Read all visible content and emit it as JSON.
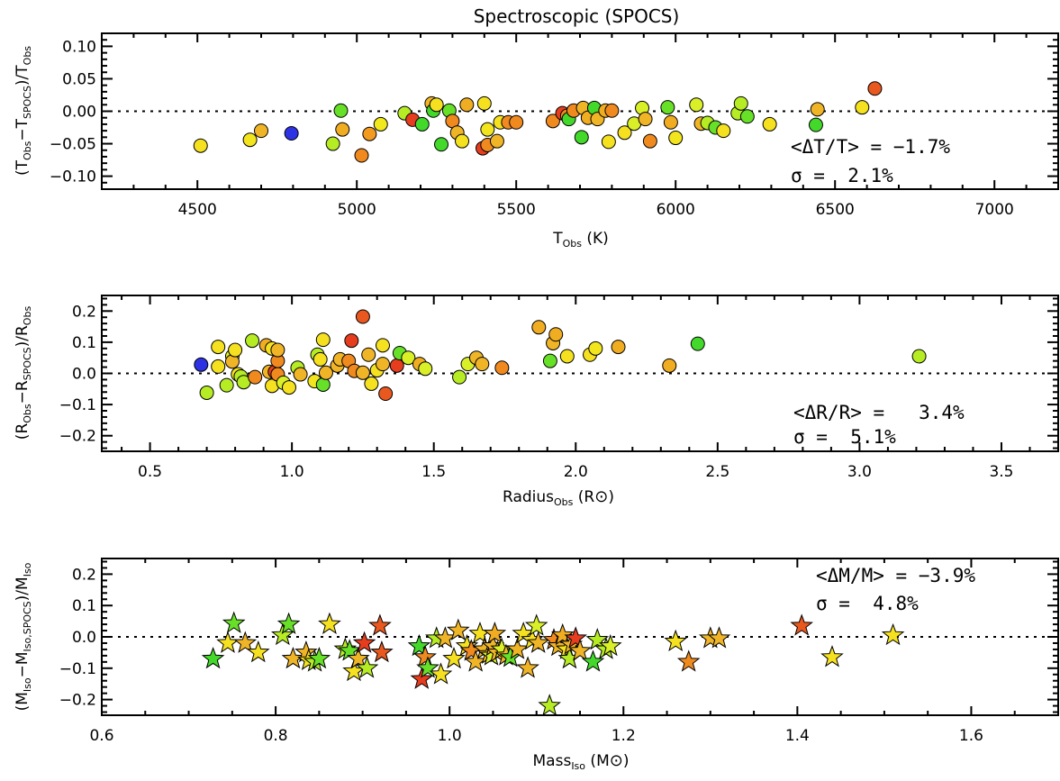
{
  "title": "Spectroscopic (SPOCS)",
  "chart_data": [
    {
      "type": "scatter",
      "marker": "circle",
      "xlabel": "T_Obs (K)",
      "ylabel": "(T_Obs−T_SPOCS)/T_Obs",
      "xlim": [
        4200,
        7200
      ],
      "ylim": [
        -0.12,
        0.12
      ],
      "xticks": [
        "4500",
        "5000",
        "5500",
        "6000",
        "6500",
        "7000"
      ],
      "yticks": [
        "−0.10",
        "−0.05",
        "0.00",
        "0.05",
        "0.10"
      ],
      "reference_line": 0,
      "stats": [
        "<ΔT/T> = −1.7%",
        "σ =  2.1%"
      ],
      "points": [
        {
          "x": 4510,
          "y": -0.053,
          "c": "#f5e11f"
        },
        {
          "x": 4665,
          "y": -0.044,
          "c": "#f2e51e"
        },
        {
          "x": 4700,
          "y": -0.03,
          "c": "#f0b527"
        },
        {
          "x": 4795,
          "y": -0.034,
          "c": "#2d32e3"
        },
        {
          "x": 4925,
          "y": -0.05,
          "c": "#b6ec24"
        },
        {
          "x": 4950,
          "y": 0.001,
          "c": "#67e028"
        },
        {
          "x": 4955,
          "y": -0.028,
          "c": "#f0ad21"
        },
        {
          "x": 5015,
          "y": -0.068,
          "c": "#f08a1f"
        },
        {
          "x": 5040,
          "y": -0.035,
          "c": "#f29b20"
        },
        {
          "x": 5075,
          "y": -0.02,
          "c": "#f2e81e"
        },
        {
          "x": 5150,
          "y": -0.003,
          "c": "#b6ec24"
        },
        {
          "x": 5175,
          "y": -0.013,
          "c": "#e63d1f"
        },
        {
          "x": 5205,
          "y": -0.02,
          "c": "#43d92a"
        },
        {
          "x": 5235,
          "y": 0.012,
          "c": "#f0b527"
        },
        {
          "x": 5240,
          "y": 0.001,
          "c": "#43d92a"
        },
        {
          "x": 5250,
          "y": 0.01,
          "c": "#f5e11f"
        },
        {
          "x": 5265,
          "y": -0.051,
          "c": "#43d92a"
        },
        {
          "x": 5290,
          "y": 0.001,
          "c": "#67e028"
        },
        {
          "x": 5300,
          "y": -0.015,
          "c": "#f08a1f"
        },
        {
          "x": 5315,
          "y": -0.033,
          "c": "#f0b527"
        },
        {
          "x": 5330,
          "y": -0.046,
          "c": "#f5e11f"
        },
        {
          "x": 5345,
          "y": 0.01,
          "c": "#f0ad21"
        },
        {
          "x": 5395,
          "y": -0.057,
          "c": "#e63d1f"
        },
        {
          "x": 5400,
          "y": 0.012,
          "c": "#f5e11f"
        },
        {
          "x": 5410,
          "y": -0.052,
          "c": "#f08a1f"
        },
        {
          "x": 5410,
          "y": -0.028,
          "c": "#f2e51e"
        },
        {
          "x": 5440,
          "y": -0.046,
          "c": "#f0b527"
        },
        {
          "x": 5450,
          "y": -0.017,
          "c": "#f5e11f"
        },
        {
          "x": 5475,
          "y": -0.017,
          "c": "#f08a1f"
        },
        {
          "x": 5500,
          "y": -0.017,
          "c": "#f08a1f"
        },
        {
          "x": 5615,
          "y": -0.015,
          "c": "#f08a1f"
        },
        {
          "x": 5645,
          "y": -0.003,
          "c": "#e63d1f"
        },
        {
          "x": 5660,
          "y": -0.007,
          "c": "#f08a1f"
        },
        {
          "x": 5665,
          "y": -0.012,
          "c": "#43d92a"
        },
        {
          "x": 5680,
          "y": 0.001,
          "c": "#f08a1f"
        },
        {
          "x": 5705,
          "y": -0.04,
          "c": "#43d92a"
        },
        {
          "x": 5710,
          "y": 0.005,
          "c": "#f0b527"
        },
        {
          "x": 5725,
          "y": -0.01,
          "c": "#f0ad21"
        },
        {
          "x": 5745,
          "y": 0.005,
          "c": "#43d92a"
        },
        {
          "x": 5755,
          "y": -0.012,
          "c": "#f0b527"
        },
        {
          "x": 5780,
          "y": 0.001,
          "c": "#f0ad21"
        },
        {
          "x": 5790,
          "y": -0.047,
          "c": "#f5e11f"
        },
        {
          "x": 5800,
          "y": 0.001,
          "c": "#f08a1f"
        },
        {
          "x": 5840,
          "y": -0.033,
          "c": "#f5e11f"
        },
        {
          "x": 5870,
          "y": -0.019,
          "c": "#d9ef28"
        },
        {
          "x": 5895,
          "y": 0.005,
          "c": "#d9ef28"
        },
        {
          "x": 5905,
          "y": -0.012,
          "c": "#f0b527"
        },
        {
          "x": 5920,
          "y": -0.046,
          "c": "#f08a1f"
        },
        {
          "x": 5975,
          "y": 0.006,
          "c": "#67e028"
        },
        {
          "x": 5985,
          "y": -0.017,
          "c": "#f0ad21"
        },
        {
          "x": 6000,
          "y": -0.041,
          "c": "#f2e51e"
        },
        {
          "x": 6065,
          "y": 0.01,
          "c": "#d9ef28"
        },
        {
          "x": 6080,
          "y": -0.019,
          "c": "#f0b527"
        },
        {
          "x": 6100,
          "y": -0.018,
          "c": "#b6ec24"
        },
        {
          "x": 6125,
          "y": -0.025,
          "c": "#67e028"
        },
        {
          "x": 6150,
          "y": -0.03,
          "c": "#f5e11f"
        },
        {
          "x": 6195,
          "y": -0.003,
          "c": "#b6ec24"
        },
        {
          "x": 6205,
          "y": 0.012,
          "c": "#b6ec24"
        },
        {
          "x": 6225,
          "y": -0.008,
          "c": "#67e028"
        },
        {
          "x": 6295,
          "y": -0.02,
          "c": "#f5e11f"
        },
        {
          "x": 6440,
          "y": -0.021,
          "c": "#43d92a"
        },
        {
          "x": 6445,
          "y": 0.003,
          "c": "#f0b527"
        },
        {
          "x": 6585,
          "y": 0.006,
          "c": "#f5e11f"
        },
        {
          "x": 6625,
          "y": 0.035,
          "c": "#e8581f"
        }
      ]
    },
    {
      "type": "scatter",
      "marker": "circle",
      "xlabel": "Radius_Obs (R_⊙)",
      "ylabel": "(R_Obs−R_SPOCS)/R_Obs",
      "xlim": [
        0.33,
        3.7
      ],
      "ylim": [
        -0.25,
        0.25
      ],
      "xticks": [
        "0.5",
        "1.0",
        "1.5",
        "2.0",
        "2.5",
        "3.0",
        "3.5"
      ],
      "yticks": [
        "−0.2",
        "−0.1",
        "0.0",
        "0.1",
        "0.2"
      ],
      "reference_line": 0,
      "stats": [
        "<ΔR/R> =   3.4%",
        "σ =  5.1%"
      ],
      "points": [
        {
          "x": 0.68,
          "y": 0.028,
          "c": "#2d32e3"
        },
        {
          "x": 0.7,
          "y": -0.062,
          "c": "#b6ec24"
        },
        {
          "x": 0.74,
          "y": 0.085,
          "c": "#f5e11f"
        },
        {
          "x": 0.74,
          "y": 0.022,
          "c": "#f5e11f"
        },
        {
          "x": 0.77,
          "y": -0.038,
          "c": "#b6ec24"
        },
        {
          "x": 0.79,
          "y": 0.055,
          "c": "#d9ef28"
        },
        {
          "x": 0.79,
          "y": 0.038,
          "c": "#f0b527"
        },
        {
          "x": 0.8,
          "y": 0.075,
          "c": "#f5e11f"
        },
        {
          "x": 0.81,
          "y": -0.003,
          "c": "#f5e11f"
        },
        {
          "x": 0.82,
          "y": -0.01,
          "c": "#b6ec24"
        },
        {
          "x": 0.83,
          "y": -0.028,
          "c": "#b6ec24"
        },
        {
          "x": 0.86,
          "y": 0.105,
          "c": "#b6ec24"
        },
        {
          "x": 0.87,
          "y": -0.012,
          "c": "#f08a1f"
        },
        {
          "x": 0.91,
          "y": 0.09,
          "c": "#f0ad21"
        },
        {
          "x": 0.92,
          "y": 0.005,
          "c": "#f0b527"
        },
        {
          "x": 0.93,
          "y": 0.08,
          "c": "#f5e11f"
        },
        {
          "x": 0.93,
          "y": -0.04,
          "c": "#f5e11f"
        },
        {
          "x": 0.94,
          "y": 0.005,
          "c": "#e63d1f"
        },
        {
          "x": 0.95,
          "y": -0.003,
          "c": "#f08a1f"
        },
        {
          "x": 0.95,
          "y": 0.04,
          "c": "#f08a1f"
        },
        {
          "x": 0.95,
          "y": 0.075,
          "c": "#f0b527"
        },
        {
          "x": 0.97,
          "y": -0.03,
          "c": "#d9ef28"
        },
        {
          "x": 0.99,
          "y": -0.045,
          "c": "#f5e11f"
        },
        {
          "x": 1.02,
          "y": 0.018,
          "c": "#b6ec24"
        },
        {
          "x": 1.03,
          "y": -0.003,
          "c": "#f0b527"
        },
        {
          "x": 1.08,
          "y": -0.025,
          "c": "#f2e51e"
        },
        {
          "x": 1.09,
          "y": 0.06,
          "c": "#b6ec24"
        },
        {
          "x": 1.1,
          "y": 0.045,
          "c": "#f5e11f"
        },
        {
          "x": 1.11,
          "y": 0.108,
          "c": "#f5e11f"
        },
        {
          "x": 1.11,
          "y": -0.036,
          "c": "#67e028"
        },
        {
          "x": 1.12,
          "y": 0.002,
          "c": "#f0b527"
        },
        {
          "x": 1.16,
          "y": 0.025,
          "c": "#f0b527"
        },
        {
          "x": 1.17,
          "y": 0.045,
          "c": "#f0b527"
        },
        {
          "x": 1.2,
          "y": 0.04,
          "c": "#f08a1f"
        },
        {
          "x": 1.21,
          "y": 0.105,
          "c": "#e63d1f"
        },
        {
          "x": 1.22,
          "y": 0.008,
          "c": "#f08a1f"
        },
        {
          "x": 1.25,
          "y": 0.182,
          "c": "#e8581f"
        },
        {
          "x": 1.25,
          "y": 0.002,
          "c": "#f0b527"
        },
        {
          "x": 1.27,
          "y": 0.06,
          "c": "#f0b527"
        },
        {
          "x": 1.28,
          "y": -0.033,
          "c": "#f5e11f"
        },
        {
          "x": 1.3,
          "y": 0.01,
          "c": "#f5e11f"
        },
        {
          "x": 1.32,
          "y": 0.09,
          "c": "#f5e11f"
        },
        {
          "x": 1.32,
          "y": 0.03,
          "c": "#f0b527"
        },
        {
          "x": 1.33,
          "y": -0.065,
          "c": "#e8581f"
        },
        {
          "x": 1.37,
          "y": 0.025,
          "c": "#e63d1f"
        },
        {
          "x": 1.38,
          "y": 0.065,
          "c": "#67e028"
        },
        {
          "x": 1.41,
          "y": 0.05,
          "c": "#d9ef28"
        },
        {
          "x": 1.45,
          "y": 0.03,
          "c": "#f0ad21"
        },
        {
          "x": 1.47,
          "y": 0.015,
          "c": "#d9ef28"
        },
        {
          "x": 1.59,
          "y": -0.012,
          "c": "#b6ec24"
        },
        {
          "x": 1.62,
          "y": 0.03,
          "c": "#d9ef28"
        },
        {
          "x": 1.65,
          "y": 0.05,
          "c": "#f0b527"
        },
        {
          "x": 1.67,
          "y": 0.03,
          "c": "#f0b527"
        },
        {
          "x": 1.74,
          "y": 0.018,
          "c": "#f08a1f"
        },
        {
          "x": 1.87,
          "y": 0.148,
          "c": "#f0ad21"
        },
        {
          "x": 1.91,
          "y": 0.04,
          "c": "#67e028"
        },
        {
          "x": 1.92,
          "y": 0.097,
          "c": "#f0b527"
        },
        {
          "x": 1.93,
          "y": 0.125,
          "c": "#f0ad21"
        },
        {
          "x": 1.97,
          "y": 0.055,
          "c": "#f5e11f"
        },
        {
          "x": 2.05,
          "y": 0.06,
          "c": "#f5e11f"
        },
        {
          "x": 2.07,
          "y": 0.08,
          "c": "#f2e51e"
        },
        {
          "x": 2.15,
          "y": 0.085,
          "c": "#f0ad21"
        },
        {
          "x": 2.33,
          "y": 0.025,
          "c": "#f0ad21"
        },
        {
          "x": 2.43,
          "y": 0.095,
          "c": "#43d92a"
        },
        {
          "x": 3.21,
          "y": 0.055,
          "c": "#b6ec24"
        }
      ]
    },
    {
      "type": "scatter",
      "marker": "star",
      "xlabel": "Mass_Iso (M_⊙)",
      "ylabel": "(M_Iso−M_Iso,SPOCS)/M_Iso",
      "xlim": [
        0.6,
        1.7
      ],
      "ylim": [
        -0.25,
        0.25
      ],
      "xticks": [
        "0.6",
        "0.8",
        "1.0",
        "1.2",
        "1.4",
        "1.6"
      ],
      "yticks": [
        "−0.2",
        "−0.1",
        "0.0",
        "0.1",
        "0.2"
      ],
      "reference_line": 0,
      "stats": [
        "<ΔM/M> = −3.9%",
        "σ =  4.8%"
      ],
      "points": [
        {
          "x": 0.728,
          "y": -0.07,
          "c": "#43d92a"
        },
        {
          "x": 0.745,
          "y": -0.02,
          "c": "#f5e11f"
        },
        {
          "x": 0.752,
          "y": 0.043,
          "c": "#67e028"
        },
        {
          "x": 0.765,
          "y": -0.02,
          "c": "#f0b527"
        },
        {
          "x": 0.78,
          "y": -0.05,
          "c": "#f5e11f"
        },
        {
          "x": 0.808,
          "y": 0.005,
          "c": "#b6ec24"
        },
        {
          "x": 0.815,
          "y": 0.04,
          "c": "#67e028"
        },
        {
          "x": 0.82,
          "y": -0.07,
          "c": "#f0b527"
        },
        {
          "x": 0.835,
          "y": -0.05,
          "c": "#f0b527"
        },
        {
          "x": 0.838,
          "y": -0.075,
          "c": "#f5e11f"
        },
        {
          "x": 0.845,
          "y": -0.08,
          "c": "#b6ec24"
        },
        {
          "x": 0.85,
          "y": -0.07,
          "c": "#67e028"
        },
        {
          "x": 0.862,
          "y": 0.04,
          "c": "#f5e11f"
        },
        {
          "x": 0.88,
          "y": -0.04,
          "c": "#b6ec24"
        },
        {
          "x": 0.885,
          "y": -0.045,
          "c": "#67e028"
        },
        {
          "x": 0.89,
          "y": -0.11,
          "c": "#f5e11f"
        },
        {
          "x": 0.895,
          "y": -0.07,
          "c": "#f0b527"
        },
        {
          "x": 0.902,
          "y": -0.02,
          "c": "#e63d1f"
        },
        {
          "x": 0.905,
          "y": -0.1,
          "c": "#b6ec24"
        },
        {
          "x": 0.92,
          "y": 0.035,
          "c": "#e8581f"
        },
        {
          "x": 0.922,
          "y": -0.05,
          "c": "#e8581f"
        },
        {
          "x": 0.965,
          "y": -0.03,
          "c": "#43d92a"
        },
        {
          "x": 0.968,
          "y": -0.135,
          "c": "#e63d1f"
        },
        {
          "x": 0.972,
          "y": -0.065,
          "c": "#f08a1f"
        },
        {
          "x": 0.975,
          "y": -0.1,
          "c": "#67e028"
        },
        {
          "x": 0.985,
          "y": -0.005,
          "c": "#b6ec24"
        },
        {
          "x": 0.99,
          "y": -0.12,
          "c": "#f5e11f"
        },
        {
          "x": 0.995,
          "y": -0.005,
          "c": "#f0b527"
        },
        {
          "x": 1.005,
          "y": -0.07,
          "c": "#f5e11f"
        },
        {
          "x": 1.01,
          "y": 0.02,
          "c": "#f0b527"
        },
        {
          "x": 1.02,
          "y": -0.03,
          "c": "#f5e11f"
        },
        {
          "x": 1.025,
          "y": -0.045,
          "c": "#f08a1f"
        },
        {
          "x": 1.03,
          "y": -0.08,
          "c": "#f0b527"
        },
        {
          "x": 1.035,
          "y": 0.01,
          "c": "#f5e11f"
        },
        {
          "x": 1.04,
          "y": -0.04,
          "c": "#f0b527"
        },
        {
          "x": 1.045,
          "y": -0.055,
          "c": "#f0b527"
        },
        {
          "x": 1.048,
          "y": -0.06,
          "c": "#d9ef28"
        },
        {
          "x": 1.05,
          "y": -0.03,
          "c": "#f0b527"
        },
        {
          "x": 1.052,
          "y": 0.01,
          "c": "#f0ad21"
        },
        {
          "x": 1.055,
          "y": -0.05,
          "c": "#f0b527"
        },
        {
          "x": 1.06,
          "y": -0.04,
          "c": "#d9ef28"
        },
        {
          "x": 1.065,
          "y": -0.06,
          "c": "#f0b527"
        },
        {
          "x": 1.07,
          "y": -0.065,
          "c": "#67e028"
        },
        {
          "x": 1.078,
          "y": -0.04,
          "c": "#f0b527"
        },
        {
          "x": 1.085,
          "y": 0.01,
          "c": "#f5e11f"
        },
        {
          "x": 1.09,
          "y": -0.1,
          "c": "#f0b527"
        },
        {
          "x": 1.095,
          "y": -0.01,
          "c": "#f5e11f"
        },
        {
          "x": 1.1,
          "y": 0.035,
          "c": "#d9ef28"
        },
        {
          "x": 1.102,
          "y": -0.02,
          "c": "#f0b527"
        },
        {
          "x": 1.115,
          "y": -0.22,
          "c": "#b6ec24"
        },
        {
          "x": 1.12,
          "y": -0.01,
          "c": "#f08a1f"
        },
        {
          "x": 1.125,
          "y": -0.03,
          "c": "#f0b527"
        },
        {
          "x": 1.13,
          "y": 0.005,
          "c": "#f0ad21"
        },
        {
          "x": 1.135,
          "y": -0.04,
          "c": "#f5e11f"
        },
        {
          "x": 1.138,
          "y": -0.07,
          "c": "#b6ec24"
        },
        {
          "x": 1.14,
          "y": -0.025,
          "c": "#f0b527"
        },
        {
          "x": 1.145,
          "y": -0.005,
          "c": "#e63d1f"
        },
        {
          "x": 1.15,
          "y": -0.045,
          "c": "#f0b527"
        },
        {
          "x": 1.165,
          "y": -0.08,
          "c": "#43d92a"
        },
        {
          "x": 1.17,
          "y": -0.01,
          "c": "#b6ec24"
        },
        {
          "x": 1.18,
          "y": -0.04,
          "c": "#b6ec24"
        },
        {
          "x": 1.185,
          "y": -0.03,
          "c": "#d9ef28"
        },
        {
          "x": 1.26,
          "y": -0.015,
          "c": "#f5e11f"
        },
        {
          "x": 1.275,
          "y": -0.08,
          "c": "#f08a1f"
        },
        {
          "x": 1.3,
          "y": -0.005,
          "c": "#f0b527"
        },
        {
          "x": 1.31,
          "y": -0.005,
          "c": "#f0b527"
        },
        {
          "x": 1.405,
          "y": 0.035,
          "c": "#e8581f"
        },
        {
          "x": 1.44,
          "y": -0.065,
          "c": "#f5e11f"
        },
        {
          "x": 1.51,
          "y": 0.005,
          "c": "#f5e11f"
        }
      ]
    }
  ]
}
